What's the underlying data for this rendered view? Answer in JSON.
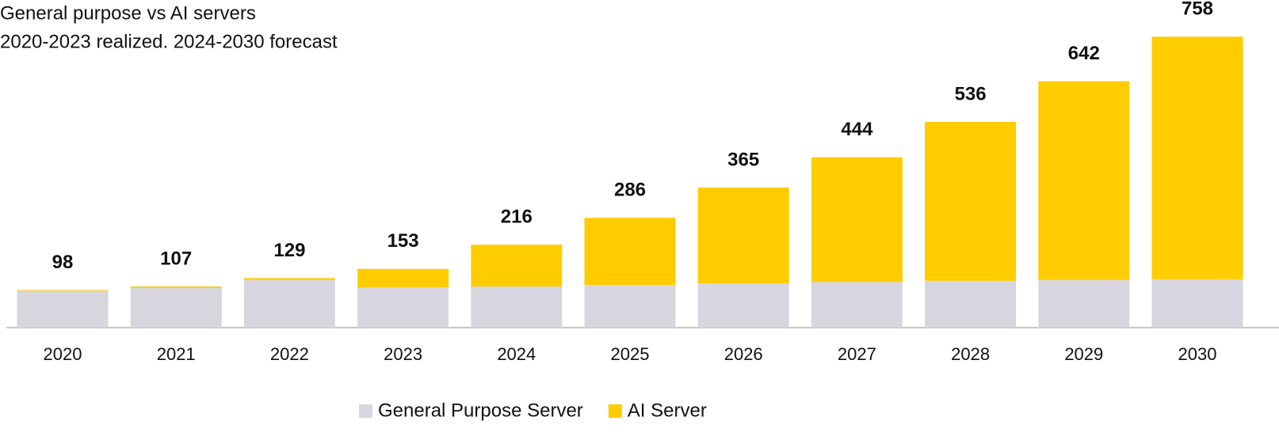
{
  "chart_data": {
    "type": "stacked_bar",
    "subtitle": [
      "General purpose vs AI servers",
      "2020-2023 realized. 2024-2030 forecast"
    ],
    "categories": [
      "2020",
      "2021",
      "2022",
      "2023",
      "2024",
      "2025",
      "2026",
      "2027",
      "2028",
      "2029",
      "2030"
    ],
    "series": [
      {
        "name": "General Purpose Server",
        "color": "#d7d6df",
        "values": [
          96,
          103,
          124,
          105,
          107,
          111,
          115,
          119,
          122,
          124,
          126
        ]
      },
      {
        "name": "AI Server",
        "color": "#ffcc00",
        "values": [
          2,
          4,
          5,
          48,
          109,
          175,
          250,
          325,
          414,
          518,
          632
        ]
      }
    ],
    "totals": [
      98,
      107,
      129,
      153,
      216,
      286,
      365,
      444,
      536,
      642,
      758
    ],
    "ylim": [
      0,
      800
    ]
  }
}
